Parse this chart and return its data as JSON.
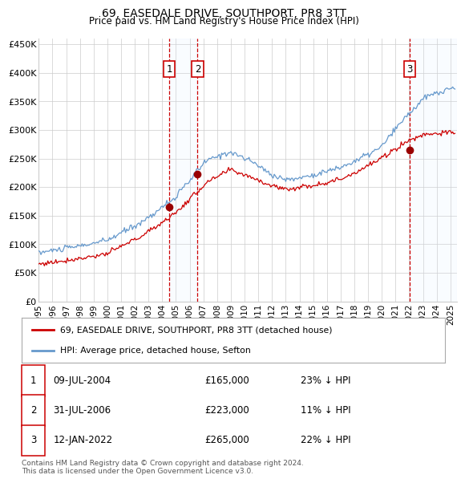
{
  "title": "69, EASEDALE DRIVE, SOUTHPORT, PR8 3TT",
  "subtitle": "Price paid vs. HM Land Registry's House Price Index (HPI)",
  "ylabel_ticks": [
    "£0",
    "£50K",
    "£100K",
    "£150K",
    "£200K",
    "£250K",
    "£300K",
    "£350K",
    "£400K",
    "£450K"
  ],
  "ytick_values": [
    0,
    50000,
    100000,
    150000,
    200000,
    250000,
    300000,
    350000,
    400000,
    450000
  ],
  "ylim": [
    0,
    460000
  ],
  "sale_dates": [
    "2004-07-09",
    "2006-07-31",
    "2022-01-12"
  ],
  "sale_prices": [
    165000,
    223000,
    265000
  ],
  "sale_labels": [
    "1",
    "2",
    "3"
  ],
  "line_color_property": "#cc0000",
  "line_color_hpi": "#6699cc",
  "dot_color": "#990000",
  "vline_color": "#cc0000",
  "shade_color": "#ddeeff",
  "grid_color": "#cccccc",
  "bg_color": "#ffffff",
  "legend_line1": "69, EASEDALE DRIVE, SOUTHPORT, PR8 3TT (detached house)",
  "legend_line2": "HPI: Average price, detached house, Sefton",
  "footer": "Contains HM Land Registry data © Crown copyright and database right 2024.\nThis data is licensed under the Open Government Licence v3.0.",
  "table_rows": [
    [
      "1",
      "09-JUL-2004",
      "£165,000",
      "23% ↓ HPI"
    ],
    [
      "2",
      "31-JUL-2006",
      "£223,000",
      "11% ↓ HPI"
    ],
    [
      "3",
      "12-JAN-2022",
      "£265,000",
      "22% ↓ HPI"
    ]
  ]
}
